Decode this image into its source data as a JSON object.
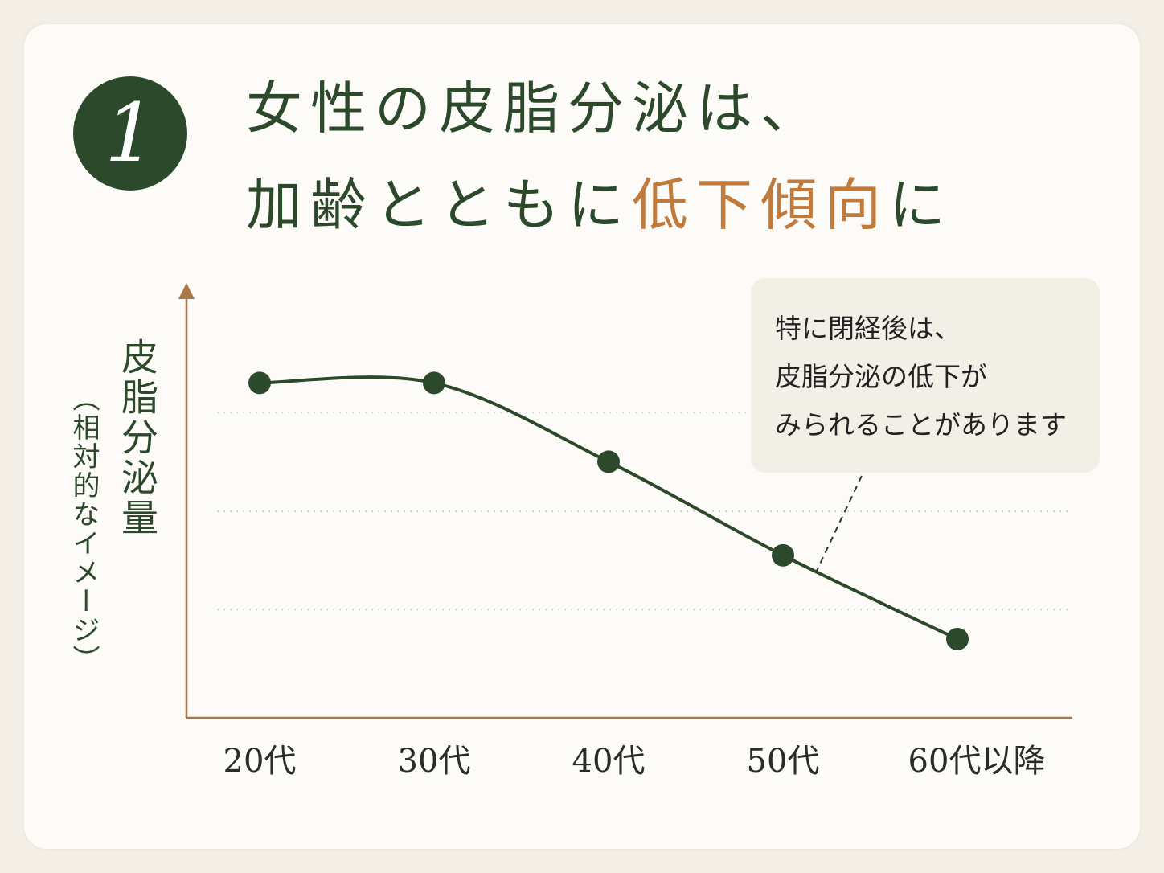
{
  "chart_data": {
    "type": "line",
    "badge": "1",
    "title": {
      "line1": "女性の皮脂分泌は、",
      "line2": [
        "加齢とともに",
        "低下傾向",
        "に"
      ]
    },
    "y_label": "皮脂分泌量",
    "y_label_note": "（相対的なイメージ）",
    "categories": [
      "20代",
      "30代",
      "40代",
      "50代",
      "60代以降"
    ],
    "series": [
      {
        "name": "皮脂分泌量",
        "color": "#2c4a2b",
        "values": [
          3.3,
          3.3,
          2.5,
          1.55,
          0.7
        ]
      }
    ],
    "ylim": [
      -0.1,
      4.25
    ],
    "gridlines": [
      1,
      2,
      3
    ],
    "callout": [
      "特に閉経後は、",
      "皮脂分泌の低下が",
      "みられることがあります"
    ]
  }
}
